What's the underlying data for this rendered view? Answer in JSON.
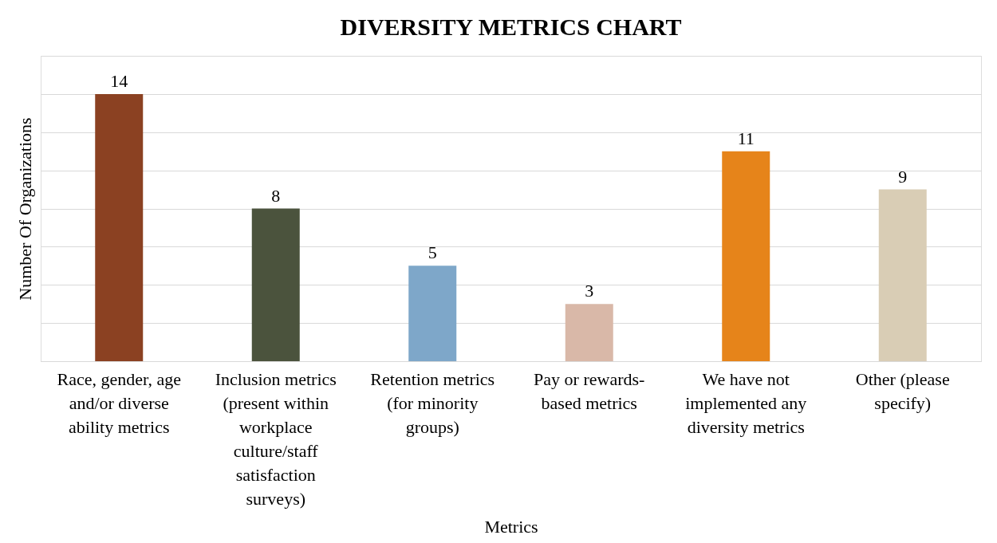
{
  "chart_data": {
    "type": "bar",
    "title": "DIVERSITY METRICS CHART",
    "xlabel": "Metrics",
    "ylabel": "Number Of Organizations",
    "categories": [
      "Race, gender, age and/or diverse ability metrics",
      "Inclusion metrics (present within workplace culture/staff satisfaction surveys)",
      "Retention metrics (for minority groups)",
      "Pay or rewards-based metrics",
      "We have not implemented any diversity metrics",
      "Other (please specify)"
    ],
    "values": [
      14,
      8,
      5,
      3,
      11,
      9
    ],
    "colors": [
      "#8b4122",
      "#4b533d",
      "#7ea7c9",
      "#d9b8a8",
      "#e6841a",
      "#d9cdb5"
    ],
    "ylim": [
      0,
      16
    ],
    "grid": "y",
    "tick_labels": "x",
    "data_labels": true
  }
}
